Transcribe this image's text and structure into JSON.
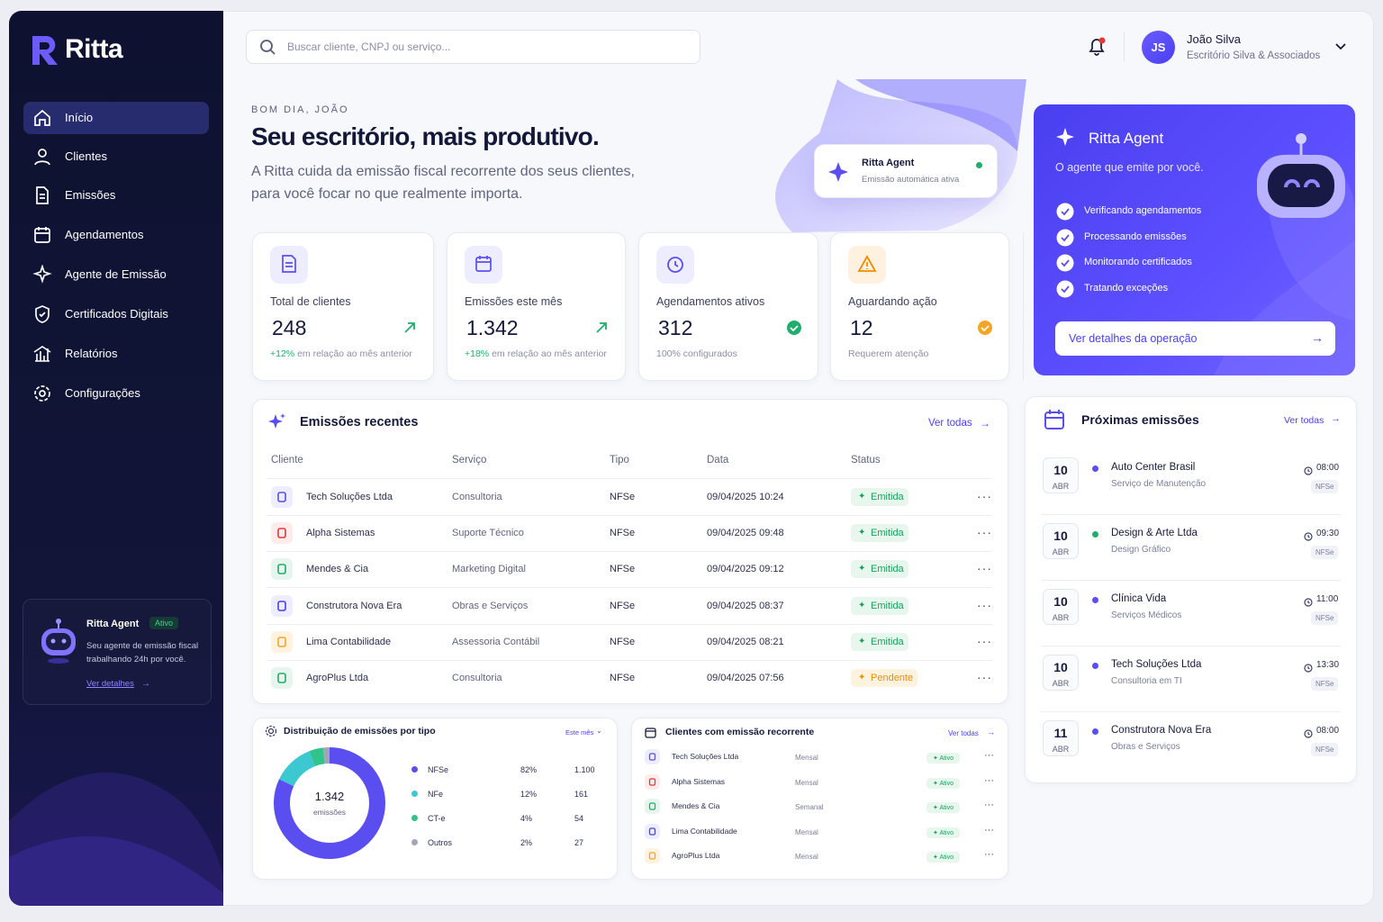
{
  "brand": "Ritta",
  "nav": [
    "Início",
    "Clientes",
    "Emissões",
    "Agendamentos",
    "Agente de Emissão",
    "Certificados Digitais",
    "Relatórios",
    "Configurações"
  ],
  "sidebar_agent": {
    "title": "Ritta Agent",
    "badge": "Ativo",
    "text_lines": [
      "Seu agente de emissão fiscal",
      "trabalhando 24h por você."
    ],
    "link": "Ver detalhes"
  },
  "search_placeholder": "Buscar cliente, CNPJ ou serviço...",
  "user": {
    "initials": "JS",
    "name": "João Silva",
    "company": "Escritório Silva & Associados"
  },
  "hero": {
    "greeting": "BOM DIA, JOÃO",
    "title": "Seu escritório, mais produtivo.",
    "subtitle_lines": [
      "A Ritta cuida da emissão fiscal recorrente dos seus clientes,",
      "para você focar no que realmente importa."
    ]
  },
  "hero_badge": {
    "title": "Ritta Agent",
    "subtitle": "Emissão automática ativa"
  },
  "stats": [
    {
      "label": "Total de clientes",
      "value": "248",
      "change": "+12%",
      "note": "em relação ao mês anterior"
    },
    {
      "label": "Emissões este mês",
      "value": "1.342",
      "change": "+18%",
      "note": "em relação ao mês anterior"
    },
    {
      "label": "Agendamentos ativos",
      "value": "312",
      "note": "100% configurados"
    },
    {
      "label": "Aguardando ação",
      "value": "12",
      "note": "Requerem atenção"
    }
  ],
  "agent_card": {
    "title": "Ritta Agent",
    "subtitle": "O agente que emite por você.",
    "tasks": [
      "Verificando agendamentos",
      "Processando emissões",
      "Monitorando certificados",
      "Tratando exceções"
    ],
    "button": "Ver detalhes da operação"
  },
  "recent": {
    "title": "Emissões recentes",
    "link": "Ver todas",
    "columns": [
      "Cliente",
      "Serviço",
      "Tipo",
      "Data",
      "Status"
    ],
    "rows": [
      [
        "Tech Soluções Ltda",
        "Consultoria",
        "NFSe",
        "09/04/2025 10:24",
        "Emitida"
      ],
      [
        "Alpha Sistemas",
        "Suporte Técnico",
        "NFSe",
        "09/04/2025 09:48",
        "Emitida"
      ],
      [
        "Mendes & Cia",
        "Marketing Digital",
        "NFSe",
        "09/04/2025 09:12",
        "Emitida"
      ],
      [
        "Construtora Nova Era",
        "Obras e Serviços",
        "NFSe",
        "09/04/2025 08:37",
        "Emitida"
      ],
      [
        "Lima Contabilidade",
        "Assessoria Contábil",
        "NFSe",
        "09/04/2025 08:21",
        "Emitida"
      ],
      [
        "AgroPlus Ltda",
        "Consultoria",
        "NFSe",
        "09/04/2025 07:56",
        "Pendente"
      ]
    ]
  },
  "upcoming": {
    "title": "Próximas emissões",
    "link": "Ver todas",
    "items": [
      {
        "day": "10",
        "month": "ABR",
        "name": "Auto Center Brasil",
        "service": "Serviço de Manutenção",
        "time": "08:00",
        "type": "NFSe"
      },
      {
        "day": "10",
        "month": "ABR",
        "name": "Design & Arte Ltda",
        "service": "Design Gráfico",
        "time": "09:30",
        "type": "NFSe"
      },
      {
        "day": "10",
        "month": "ABR",
        "name": "Clínica Vida",
        "service": "Serviços Médicos",
        "time": "11:00",
        "type": "NFSe"
      },
      {
        "day": "10",
        "month": "ABR",
        "name": "Tech Soluções Ltda",
        "service": "Consultoria em TI",
        "time": "13:30",
        "type": "NFSe"
      },
      {
        "day": "11",
        "month": "ABR",
        "name": "Construtora Nova Era",
        "service": "Obras e Serviços",
        "time": "08:00",
        "type": "NFSe"
      }
    ]
  },
  "distribution": {
    "title": "Distribuição de emissões por tipo",
    "period": "Este mês",
    "total": "1.342",
    "total_label": "emissões",
    "rows": [
      {
        "name": "NFSe",
        "share": "82%",
        "count": "1.100"
      },
      {
        "name": "NFe",
        "share": "12%",
        "count": "161"
      },
      {
        "name": "CT-e",
        "share": "4%",
        "count": "54"
      },
      {
        "name": "Outros",
        "share": "2%",
        "count": "27"
      }
    ]
  },
  "recurring": {
    "title": "Clientes com emissão recorrente",
    "link": "Ver todas",
    "rows": [
      {
        "name": "Tech Soluções Ltda",
        "frequency": "Mensal",
        "status": "Ativo"
      },
      {
        "name": "Alpha Sistemas",
        "frequency": "Mensal",
        "status": "Ativo"
      },
      {
        "name": "Mendes & Cia",
        "frequency": "Semanal",
        "status": "Ativo"
      },
      {
        "name": "Lima Contabilidade",
        "frequency": "Mensal",
        "status": "Ativo"
      },
      {
        "name": "AgroPlus Ltda",
        "frequency": "Mensal",
        "status": "Ativo"
      }
    ]
  }
}
